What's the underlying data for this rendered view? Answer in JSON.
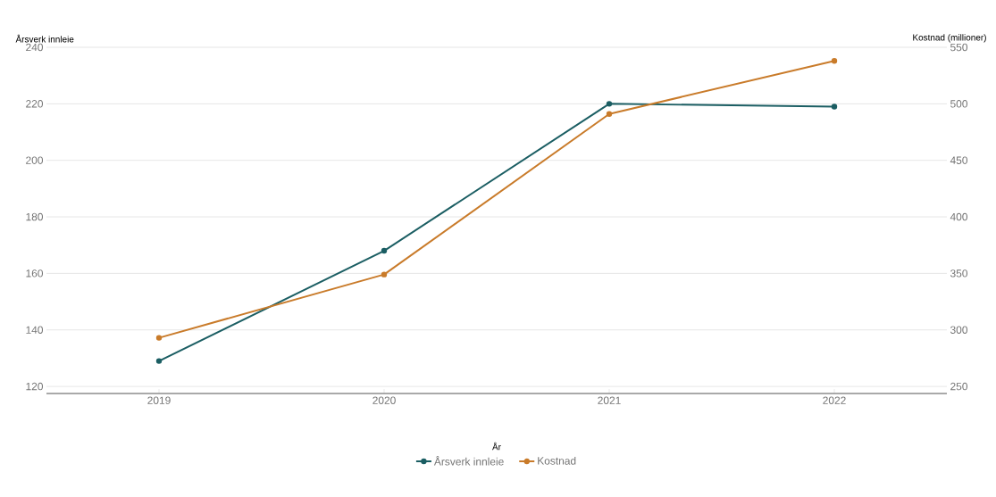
{
  "chart_data": {
    "type": "line",
    "xlabel": "År",
    "ylabel": "Årsverk innleie",
    "y2label": "Kostnad (millioner)",
    "categories": [
      "2019",
      "2020",
      "2021",
      "2022"
    ],
    "series": [
      {
        "name": "Årsverk innleie",
        "color": "#1b5e63",
        "values": [
          129,
          168,
          220,
          219
        ]
      },
      {
        "name": "Kostnad",
        "color": "#c97b2a",
        "values": [
          293,
          349,
          491,
          538
        ],
        "axis": "y2"
      }
    ],
    "ylim": [
      117.5,
      240
    ],
    "yticks": [
      120,
      140,
      160,
      180,
      200,
      220,
      240
    ],
    "y2lim": [
      243.75,
      550
    ],
    "y2ticks": [
      250,
      300,
      350,
      400,
      450,
      500,
      550
    ],
    "grid": "y",
    "legend": "bottom",
    "marker": "circle",
    "line_style": "solid"
  }
}
